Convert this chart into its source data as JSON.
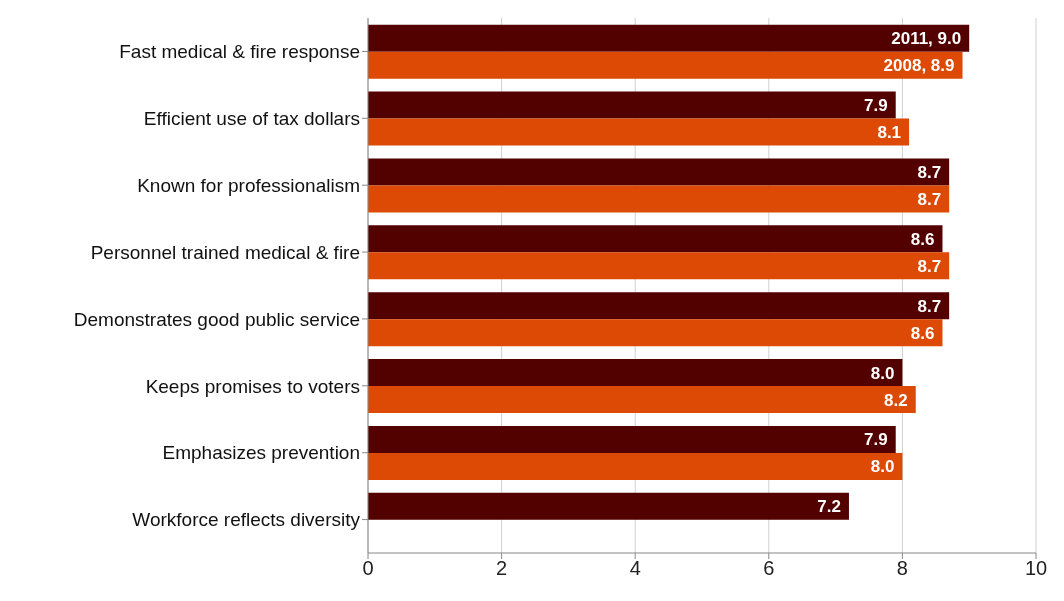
{
  "chart_data": {
    "type": "bar",
    "orientation": "horizontal",
    "categories": [
      "Fast medical & fire response",
      "Efficient use of tax dollars",
      "Known for professionalism",
      "Personnel trained medical & fire",
      "Demonstrates good public service",
      "Keeps promises to voters",
      "Emphasizes prevention",
      "Workforce reflects diversity"
    ],
    "series": [
      {
        "color": "#520000",
        "values": [
          9.0,
          7.9,
          8.7,
          8.6,
          8.7,
          8.0,
          7.9,
          7.2
        ],
        "value_labels": [
          "2011, 9.0",
          "7.9",
          "8.7",
          "8.6",
          "8.7",
          "8.0",
          "7.9",
          "7.2"
        ]
      },
      {
        "color": "#dc4a05",
        "values": [
          8.9,
          8.1,
          8.7,
          8.7,
          8.6,
          8.2,
          8.0,
          null
        ],
        "value_labels": [
          "2008, 8.9",
          "8.1",
          "8.7",
          "8.7",
          "8.6",
          "8.2",
          "8.0",
          null
        ]
      }
    ],
    "xlim": [
      0,
      10
    ],
    "xticks": [
      0,
      2,
      4,
      6,
      8,
      10
    ],
    "grid": "x",
    "legend": false
  }
}
